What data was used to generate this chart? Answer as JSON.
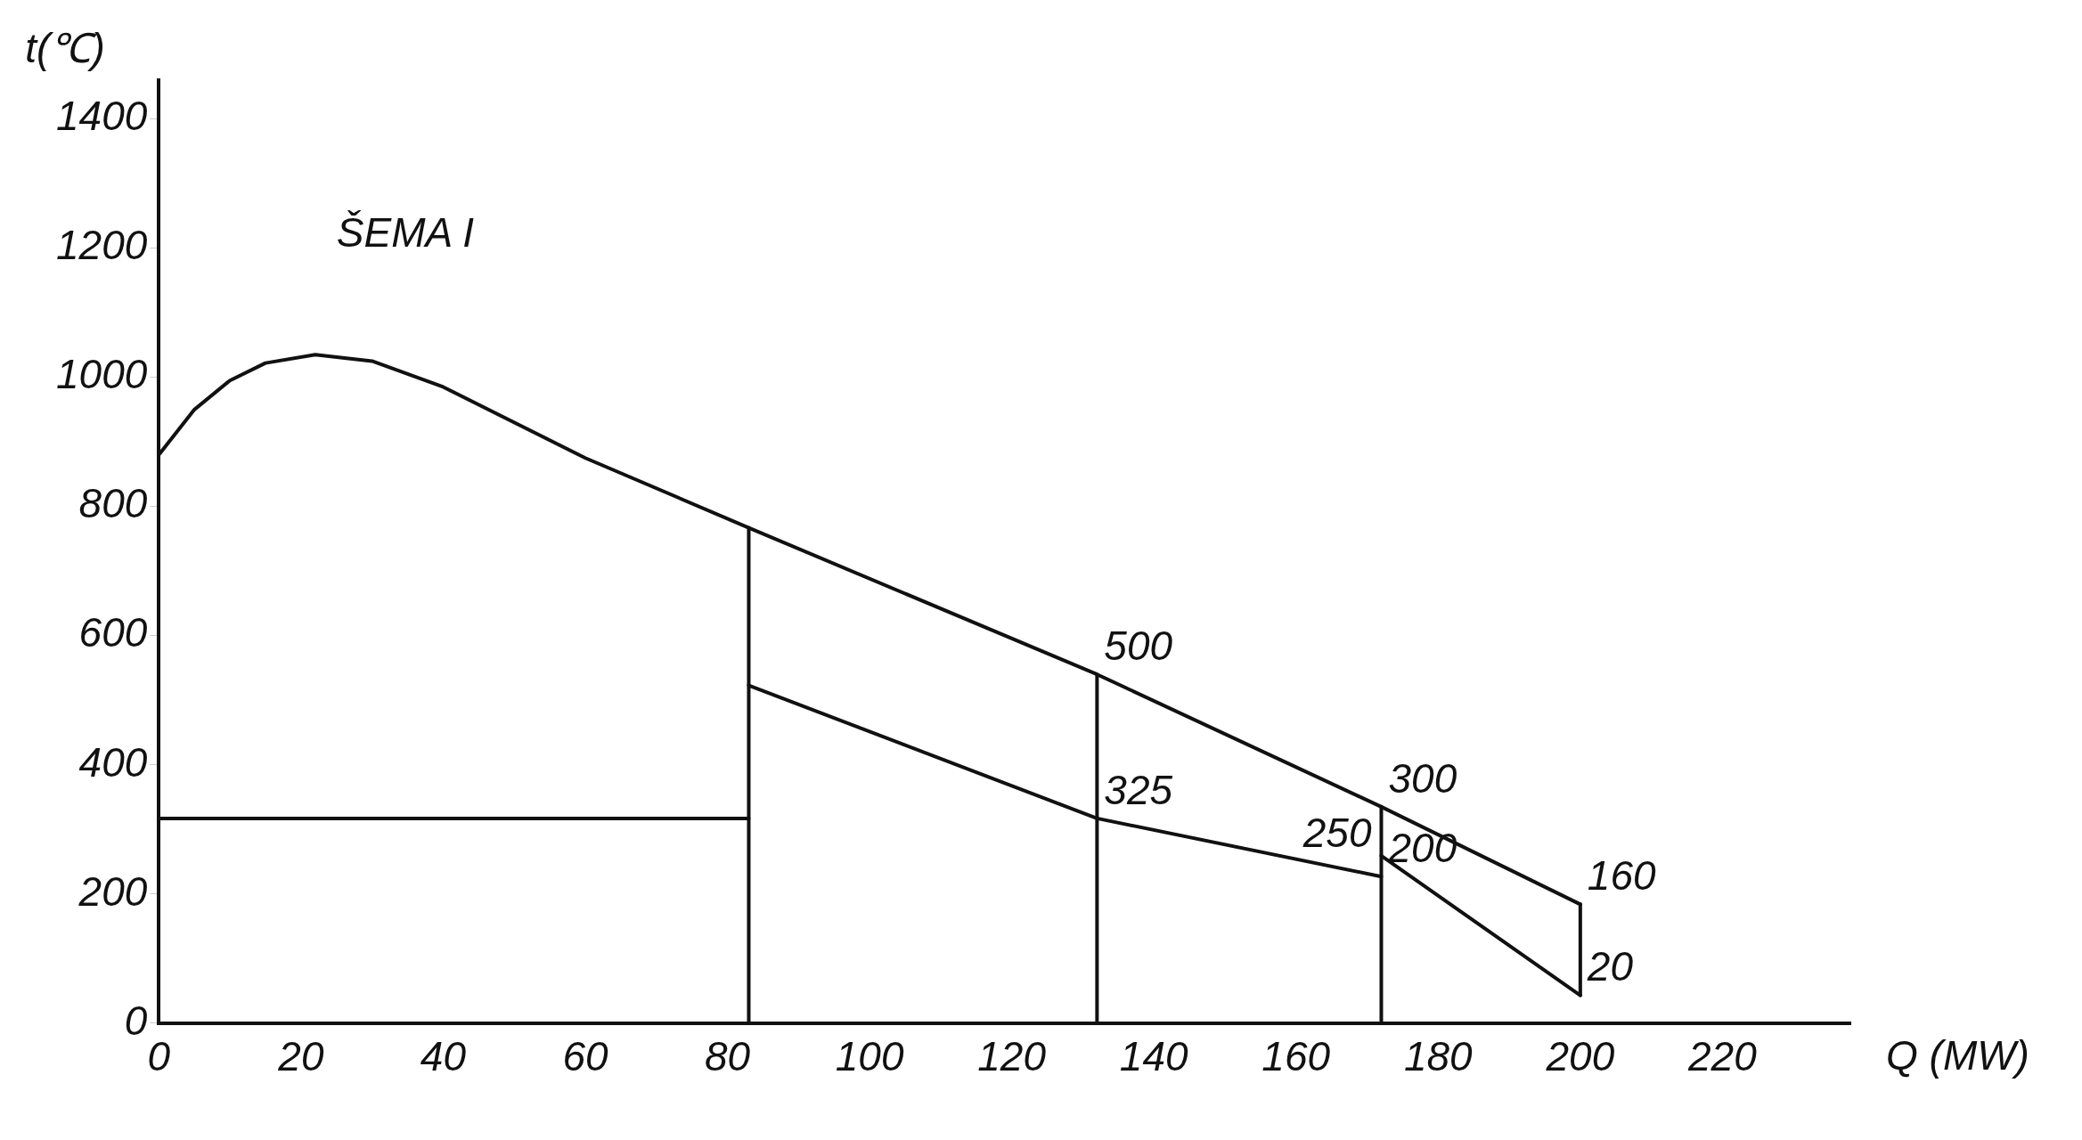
{
  "chart_data": {
    "type": "line",
    "title": "ŠEMA I",
    "xlabel": "Q (MW)",
    "ylabel": "t(℃)",
    "xlim": [
      0,
      238
    ],
    "xticks": [
      0,
      20,
      40,
      60,
      80,
      100,
      120,
      140,
      160,
      180,
      200,
      220
    ],
    "ylim": [
      0,
      1460
    ],
    "yticks": [
      0,
      200,
      400,
      600,
      800,
      1000,
      1200,
      1400
    ],
    "grid": false,
    "legend": false,
    "marker": "none",
    "line_style": "solid",
    "series": [
      {
        "color": "#111111",
        "x": [
          0,
          5,
          10,
          15,
          22,
          30,
          40,
          60,
          83,
          132,
          172,
          200
        ],
        "values": [
          880,
          950,
          995,
          1022,
          1035,
          1025,
          985,
          875,
          767,
          540,
          335,
          184
        ]
      },
      {
        "color": "#111111",
        "x": [
          0,
          83
        ],
        "values": [
          317,
          317
        ]
      },
      {
        "color": "#111111",
        "x": [
          83,
          132,
          172
        ],
        "values": [
          523,
          317,
          227
        ]
      },
      {
        "color": "#111111",
        "x": [
          172,
          200
        ],
        "values": [
          259,
          43
        ]
      },
      {
        "color": "#111111",
        "x": [
          83,
          83
        ],
        "values": [
          0,
          767
        ]
      },
      {
        "color": "#111111",
        "x": [
          132,
          132
        ],
        "values": [
          0,
          540
        ]
      },
      {
        "color": "#111111",
        "x": [
          172,
          172
        ],
        "values": [
          0,
          335
        ]
      },
      {
        "color": "#111111",
        "x": [
          200,
          200
        ],
        "values": [
          43,
          184
        ]
      }
    ],
    "annotations": [
      {
        "text": "500",
        "x": 132,
        "y": 540
      },
      {
        "text": "325",
        "x": 132,
        "y": 317
      },
      {
        "text": "300",
        "x": 172,
        "y": 335
      },
      {
        "text": "250",
        "x": 160,
        "y": 250
      },
      {
        "text": "200",
        "x": 172,
        "y": 227
      },
      {
        "text": "160",
        "x": 200,
        "y": 184
      },
      {
        "text": "20",
        "x": 200,
        "y": 43
      }
    ]
  }
}
